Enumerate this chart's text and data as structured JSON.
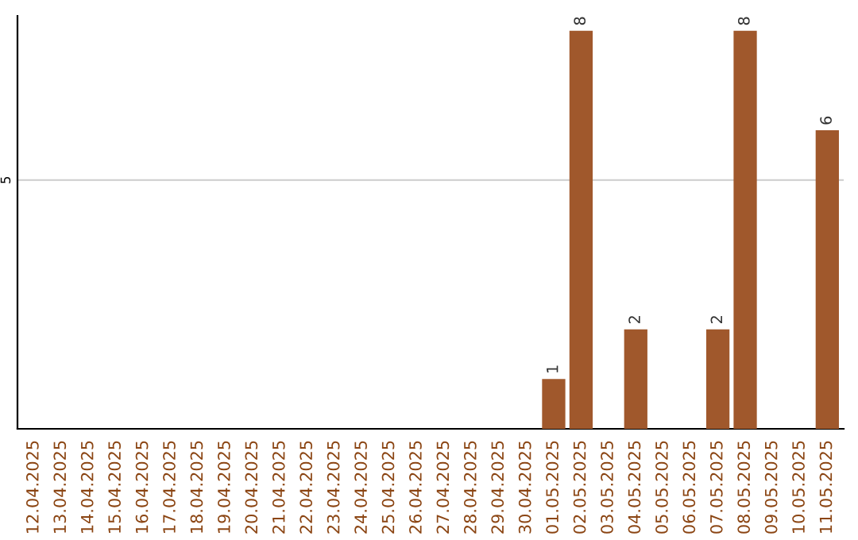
{
  "chart_data": {
    "type": "bar",
    "categories": [
      "12.04.2025",
      "13.04.2025",
      "14.04.2025",
      "15.04.2025",
      "16.04.2025",
      "17.04.2025",
      "18.04.2025",
      "19.04.2025",
      "20.04.2025",
      "21.04.2025",
      "22.04.2025",
      "23.04.2025",
      "24.04.2025",
      "25.04.2025",
      "26.04.2025",
      "27.04.2025",
      "28.04.2025",
      "29.04.2025",
      "30.04.2025",
      "01.05.2025",
      "02.05.2025",
      "03.05.2025",
      "04.05.2025",
      "05.05.2025",
      "06.05.2025",
      "07.05.2025",
      "08.05.2025",
      "09.05.2025",
      "10.05.2025",
      "11.05.2025"
    ],
    "values": [
      null,
      null,
      null,
      null,
      null,
      null,
      null,
      null,
      null,
      null,
      null,
      null,
      null,
      null,
      null,
      null,
      null,
      null,
      null,
      1,
      8,
      null,
      2,
      null,
      null,
      2,
      8,
      null,
      null,
      6
    ],
    "color": "#a0582c",
    "ylim": [
      0,
      8.3
    ],
    "yticks": [
      5
    ],
    "grid": "y",
    "data_labels": true
  }
}
